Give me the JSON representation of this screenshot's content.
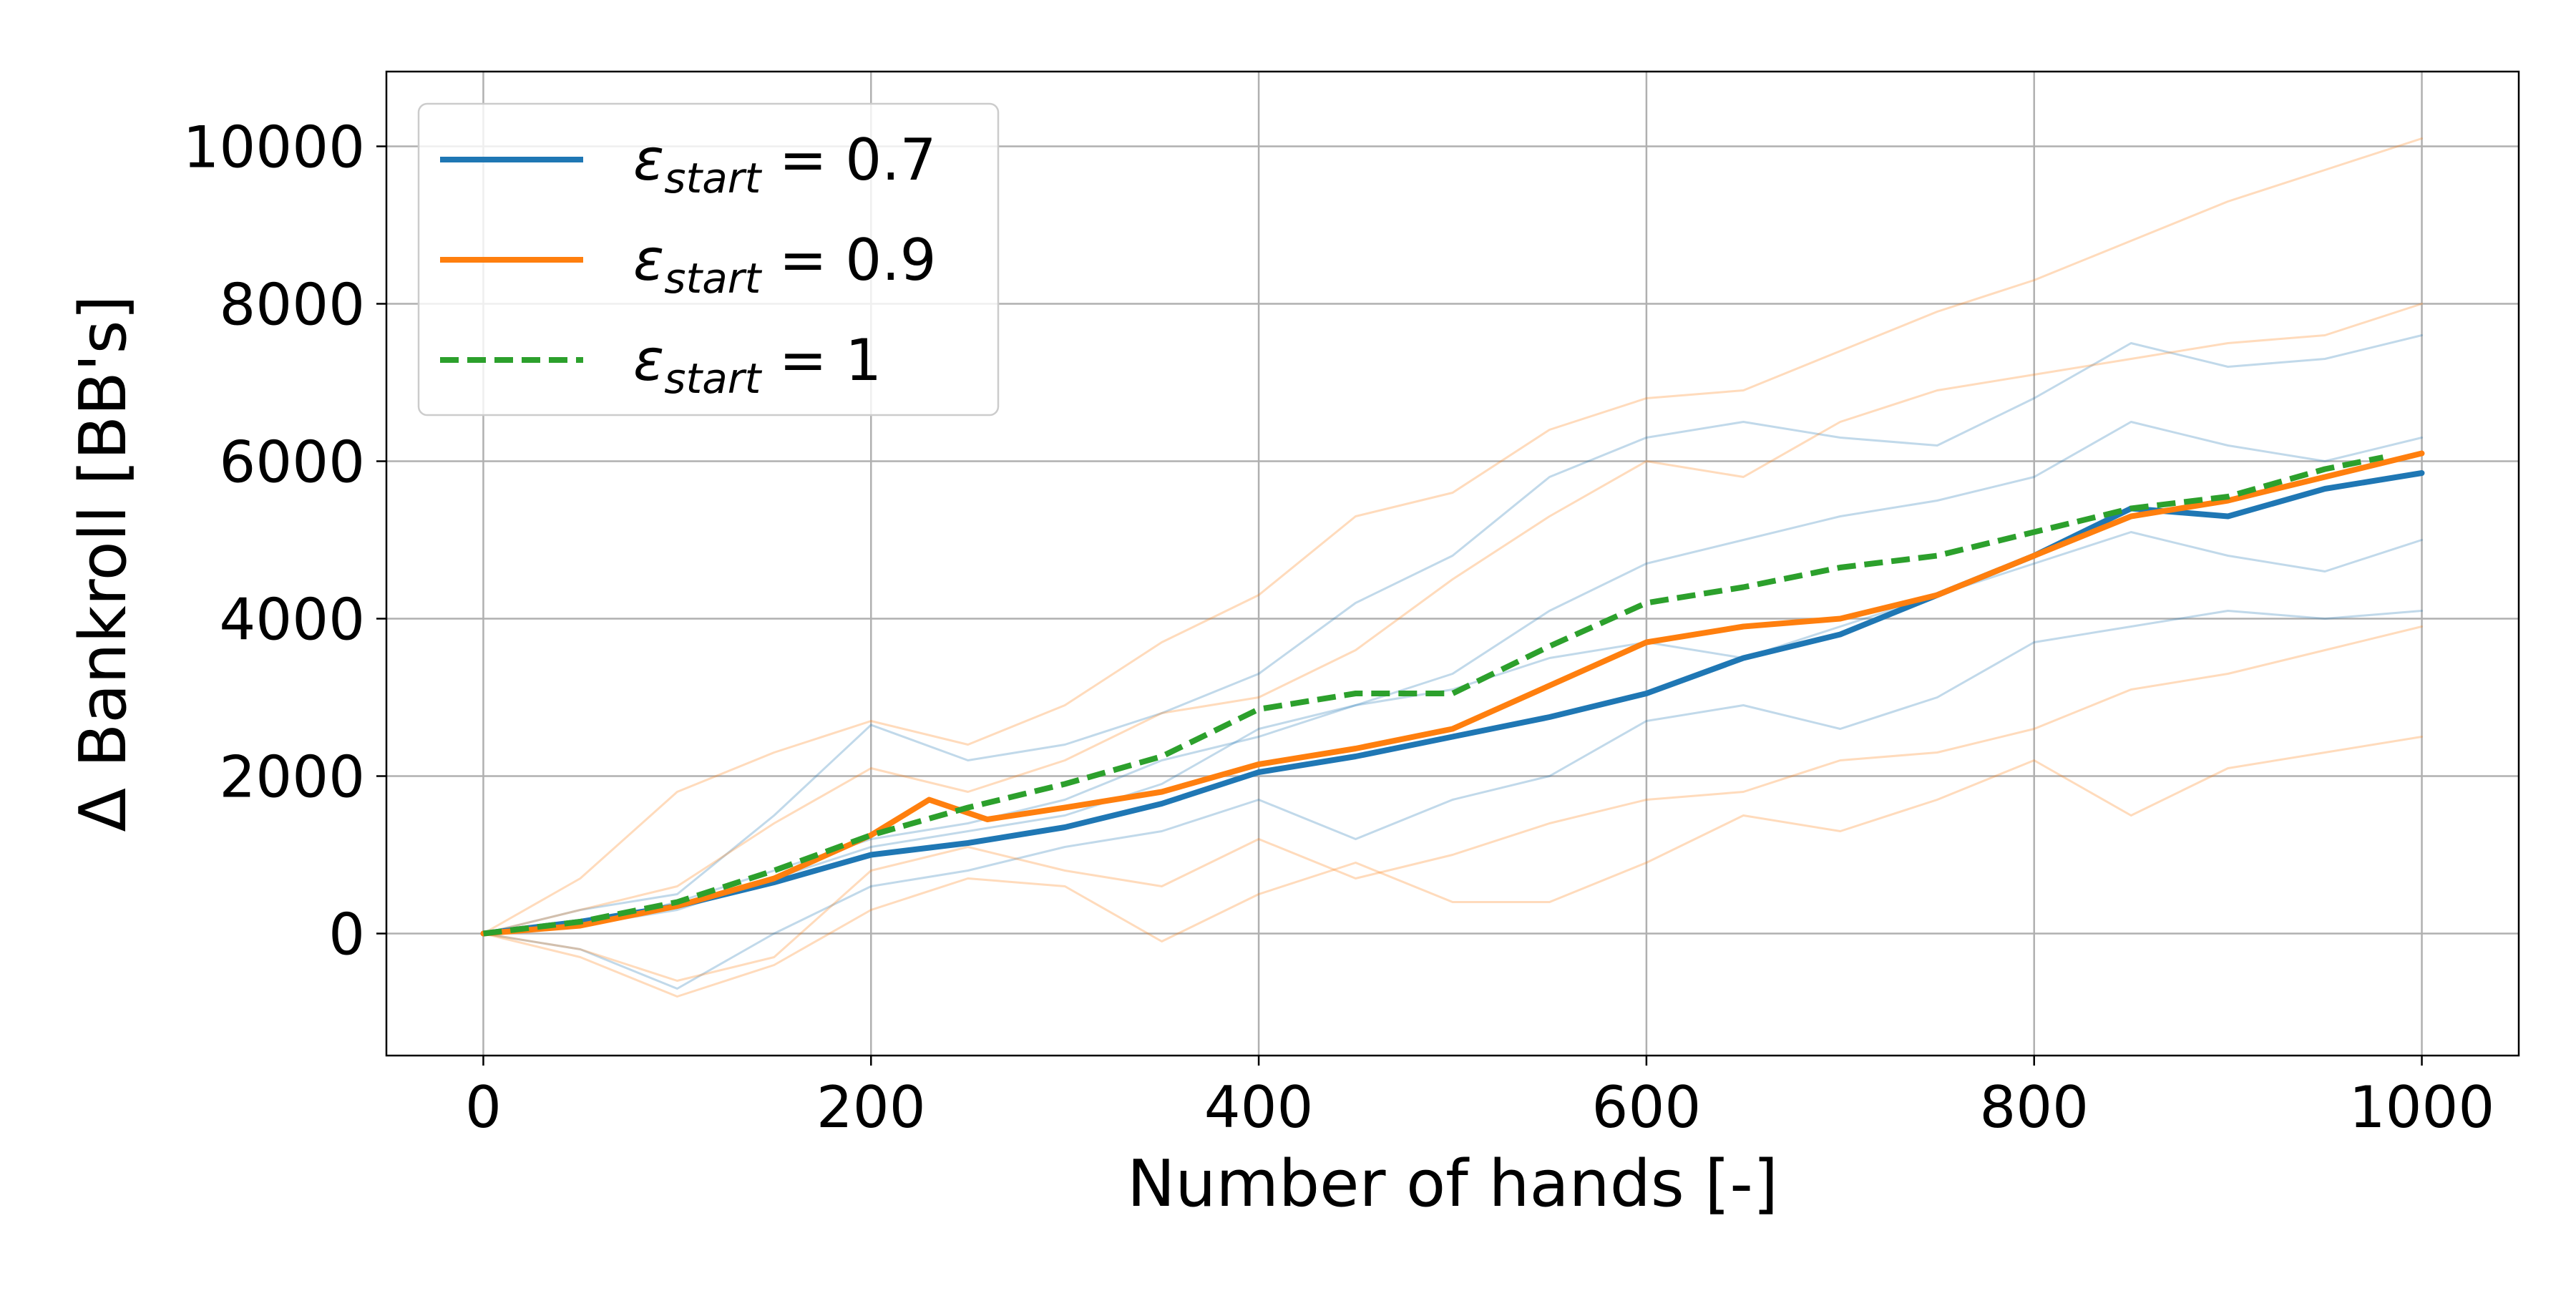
{
  "chart_data": {
    "type": "line",
    "title": "",
    "xlabel": "Number of hands [-]",
    "ylabel": "Δ Bankroll [BB's]",
    "xlim": [
      -50,
      1050
    ],
    "ylim": [
      -1550,
      10950
    ],
    "xticks": [
      0,
      200,
      400,
      600,
      800,
      1000
    ],
    "yticks": [
      0,
      2000,
      4000,
      6000,
      8000,
      10000
    ],
    "xtick_labels": [
      "0",
      "200",
      "400",
      "600",
      "800",
      "1000"
    ],
    "ytick_labels": [
      "0",
      "2000",
      "4000",
      "6000",
      "8000",
      "10000"
    ],
    "grid": true,
    "legend_position": "top-left",
    "legend": [
      {
        "symbol": "ε",
        "subscript": "start",
        "rest": " = 0.7"
      },
      {
        "symbol": "ε",
        "subscript": "start",
        "rest": " = 0.9"
      },
      {
        "symbol": "ε",
        "subscript": "start",
        "rest": " = 1"
      }
    ],
    "colors": {
      "blue": "#1f77b4",
      "orange": "#ff7f0e",
      "green": "#2ca02c",
      "grid": "#b0b0b0"
    },
    "series": [
      {
        "color": "blue",
        "style": "solid",
        "emphasis": "mean",
        "x": [
          0,
          50,
          100,
          150,
          200,
          250,
          300,
          350,
          400,
          450,
          500,
          550,
          600,
          650,
          700,
          750,
          800,
          850,
          900,
          950,
          1000
        ],
        "y": [
          0,
          150,
          350,
          650,
          1000,
          1150,
          1350,
          1650,
          2050,
          2250,
          2500,
          2750,
          3050,
          3500,
          3800,
          4300,
          4800,
          5400,
          5300,
          5650,
          5850
        ]
      },
      {
        "color": "orange",
        "style": "solid",
        "emphasis": "mean",
        "x": [
          0,
          50,
          100,
          150,
          200,
          230,
          260,
          300,
          350,
          400,
          450,
          500,
          550,
          600,
          650,
          700,
          750,
          800,
          850,
          900,
          950,
          1000
        ],
        "y": [
          0,
          100,
          350,
          700,
          1250,
          1700,
          1450,
          1600,
          1800,
          2150,
          2350,
          2600,
          3150,
          3700,
          3900,
          4000,
          4300,
          4800,
          5300,
          5500,
          5800,
          6100
        ]
      },
      {
        "color": "green",
        "style": "dashed",
        "emphasis": "mean",
        "x": [
          0,
          50,
          100,
          150,
          200,
          250,
          300,
          350,
          400,
          450,
          500,
          550,
          600,
          650,
          700,
          750,
          800,
          850,
          900,
          950,
          980
        ],
        "y": [
          0,
          150,
          400,
          800,
          1250,
          1600,
          1900,
          2250,
          2850,
          3050,
          3050,
          3650,
          4200,
          4400,
          4650,
          4800,
          5100,
          5400,
          5550,
          5900,
          6050
        ]
      },
      {
        "color": "blue",
        "style": "solid",
        "emphasis": "faint",
        "x": [
          0,
          50,
          100,
          150,
          200,
          250,
          300,
          350,
          400,
          450,
          500,
          550,
          600,
          650,
          700,
          750,
          800,
          850,
          900,
          950,
          1000
        ],
        "y": [
          0,
          300,
          500,
          1500,
          2650,
          2200,
          2400,
          2800,
          3300,
          4200,
          4800,
          5800,
          6300,
          6500,
          6300,
          6200,
          6800,
          7500,
          7200,
          7300,
          7600
        ]
      },
      {
        "color": "blue",
        "style": "solid",
        "emphasis": "faint",
        "x": [
          0,
          50,
          100,
          150,
          200,
          250,
          300,
          350,
          400,
          450,
          500,
          550,
          600,
          650,
          700,
          750,
          800,
          850,
          900,
          950,
          1000
        ],
        "y": [
          0,
          100,
          300,
          700,
          1100,
          1300,
          1500,
          1900,
          2600,
          2900,
          3300,
          4100,
          4700,
          5000,
          5300,
          5500,
          5800,
          6500,
          6200,
          6000,
          6300
        ]
      },
      {
        "color": "blue",
        "style": "solid",
        "emphasis": "faint",
        "x": [
          0,
          50,
          100,
          150,
          200,
          250,
          300,
          350,
          400,
          450,
          500,
          550,
          600,
          650,
          700,
          750,
          800,
          850,
          900,
          950,
          1000
        ],
        "y": [
          0,
          100,
          400,
          800,
          1200,
          1400,
          1700,
          2200,
          2500,
          2900,
          3100,
          3500,
          3700,
          3500,
          3900,
          4300,
          4700,
          5100,
          4800,
          4600,
          5000
        ]
      },
      {
        "color": "blue",
        "style": "solid",
        "emphasis": "faint",
        "x": [
          0,
          50,
          100,
          150,
          200,
          250,
          300,
          350,
          400,
          450,
          500,
          550,
          600,
          650,
          700,
          750,
          800,
          850,
          900,
          950,
          1000
        ],
        "y": [
          0,
          -200,
          -700,
          0,
          600,
          800,
          1100,
          1300,
          1700,
          1200,
          1700,
          2000,
          2700,
          2900,
          2600,
          3000,
          3700,
          3900,
          4100,
          4000,
          4100
        ]
      },
      {
        "color": "orange",
        "style": "solid",
        "emphasis": "faint",
        "x": [
          0,
          50,
          100,
          150,
          200,
          250,
          300,
          350,
          400,
          450,
          500,
          550,
          600,
          650,
          700,
          750,
          800,
          850,
          900,
          950,
          1000
        ],
        "y": [
          0,
          700,
          1800,
          2300,
          2700,
          2400,
          2900,
          3700,
          4300,
          5300,
          5600,
          6400,
          6800,
          6900,
          7400,
          7900,
          8300,
          8800,
          9300,
          9700,
          10100
        ]
      },
      {
        "color": "orange",
        "style": "solid",
        "emphasis": "faint",
        "x": [
          0,
          50,
          100,
          150,
          200,
          250,
          300,
          350,
          400,
          450,
          500,
          550,
          600,
          650,
          700,
          750,
          800,
          850,
          900,
          950,
          1000
        ],
        "y": [
          0,
          300,
          600,
          1400,
          2100,
          1800,
          2200,
          2800,
          3000,
          3600,
          4500,
          5300,
          6000,
          5800,
          6500,
          6900,
          7100,
          7300,
          7500,
          7600,
          8000
        ]
      },
      {
        "color": "orange",
        "style": "solid",
        "emphasis": "faint",
        "x": [
          0,
          50,
          100,
          150,
          200,
          250,
          300,
          350,
          400,
          450,
          500,
          550,
          600,
          650,
          700,
          750,
          800,
          850,
          900,
          950,
          1000
        ],
        "y": [
          0,
          -300,
          -800,
          -400,
          300,
          700,
          600,
          -100,
          500,
          900,
          400,
          400,
          900,
          1500,
          1300,
          1700,
          2200,
          1500,
          2100,
          2300,
          2500
        ]
      },
      {
        "color": "orange",
        "style": "solid",
        "emphasis": "faint",
        "x": [
          0,
          50,
          100,
          150,
          200,
          250,
          300,
          350,
          400,
          450,
          500,
          550,
          600,
          650,
          700,
          750,
          800,
          850,
          900,
          950,
          1000
        ],
        "y": [
          0,
          -200,
          -600,
          -300,
          800,
          1100,
          800,
          600,
          1200,
          700,
          1000,
          1400,
          1700,
          1800,
          2200,
          2300,
          2600,
          3100,
          3300,
          3600,
          3900
        ]
      }
    ]
  }
}
